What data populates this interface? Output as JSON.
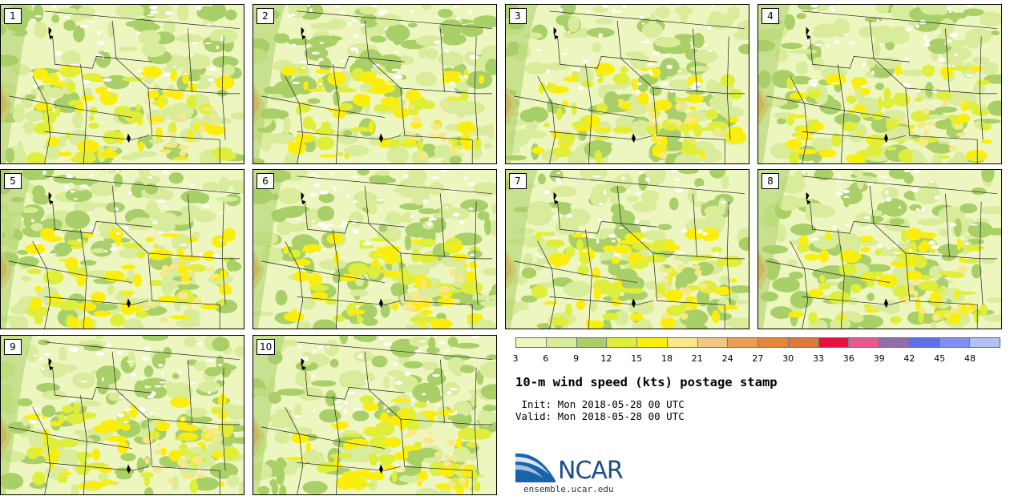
{
  "panels": [
    {
      "label": "1"
    },
    {
      "label": "2"
    },
    {
      "label": "3"
    },
    {
      "label": "4"
    },
    {
      "label": "5"
    },
    {
      "label": "6"
    },
    {
      "label": "7"
    },
    {
      "label": "8"
    },
    {
      "label": "9"
    },
    {
      "label": "10"
    }
  ],
  "legend": {
    "colors": [
      "#eef6c0",
      "#d9ec9c",
      "#a9cf68",
      "#dfee3a",
      "#fbee0c",
      "#f8e888",
      "#f0c884",
      "#e8a050",
      "#e48838",
      "#dc7838",
      "#e81040",
      "#e85890",
      "#9070a8",
      "#6070e8",
      "#8090f0",
      "#b0c0f0"
    ],
    "ticks": [
      "3",
      "6",
      "9",
      "12",
      "15",
      "18",
      "21",
      "24",
      "27",
      "30",
      "33",
      "36",
      "39",
      "42",
      "45",
      "48"
    ]
  },
  "title": "10-m wind speed (kts) postage stamp",
  "init": " Init: Mon 2018-05-28 00 UTC",
  "valid": "Valid: Mon 2018-05-28 00 UTC",
  "logo": {
    "name": "NCAR",
    "url": "ensemble.ucar.edu"
  }
}
